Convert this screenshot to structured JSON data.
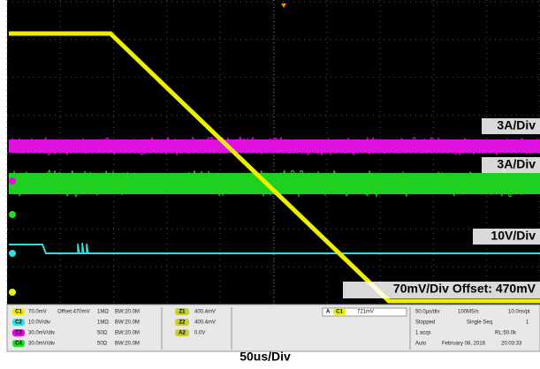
{
  "screen": {
    "labels": [
      "3A/Div",
      "3A/Div",
      "10V/Div",
      "70mV/Div Offset: 470mV"
    ]
  },
  "channels": [
    {
      "badge": "C1",
      "scale": "70.0mV",
      "offset": "Offset:470mV",
      "impedance": "1MΩ",
      "bandwidth": "BW:20.0M"
    },
    {
      "badge": "C2",
      "scale": "10.0V/div",
      "impedance": "1MΩ",
      "bandwidth": "BW:20.0M"
    },
    {
      "badge": "C3",
      "scale": "30.0mV/div",
      "impedance": "50Ω",
      "bandwidth": "BW:20.0M"
    },
    {
      "badge": "C4",
      "scale": "30.0mV/div",
      "impedance": "50Ω",
      "bandwidth": "BW:20.0M"
    }
  ],
  "math": [
    {
      "badge": "Z1",
      "value": "400.4mV"
    },
    {
      "badge": "Z2",
      "value": "400.4mV"
    },
    {
      "badge": "A2",
      "value": "0.0V"
    }
  ],
  "trigger": {
    "badge": "A",
    "source": "C1",
    "value": "721mV"
  },
  "acquisition": [
    [
      "50.0µs/div",
      "100MS/s",
      "10.0ns/pt"
    ],
    [
      "Stopped",
      "Single Seq",
      "1"
    ],
    [
      "1 acqs",
      "RL:50.0k"
    ],
    [
      "Auto",
      "February 08, 2016",
      "20:03:33"
    ]
  ],
  "footer": "50us/Div"
}
